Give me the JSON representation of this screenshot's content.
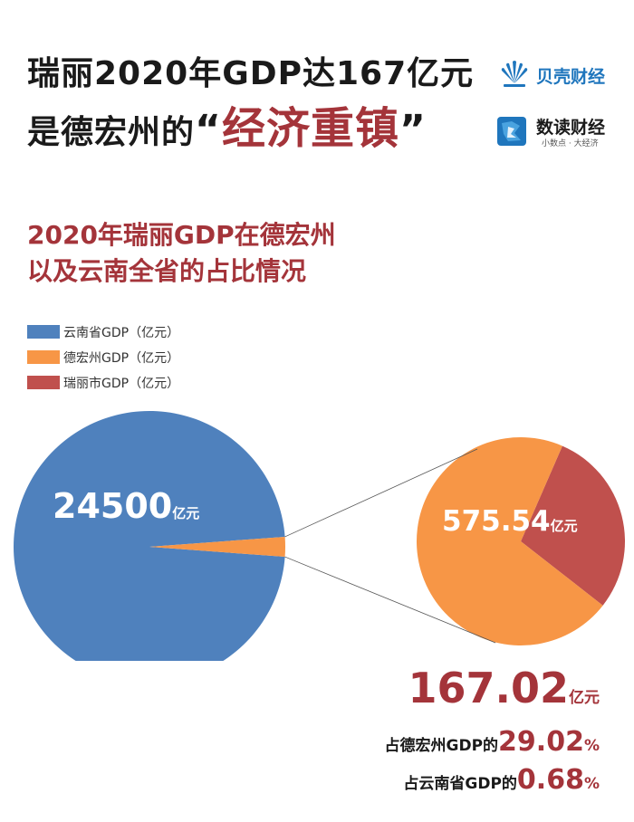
{
  "headline": {
    "line1": "瑞丽2020年GDP达167亿元",
    "line2_prefix": "是德宏州的",
    "quote_open": "“",
    "emphasis": "经济重镇",
    "quote_close": "”"
  },
  "logos": {
    "beike": {
      "name": "贝壳财经",
      "color": "#1f76bd"
    },
    "shudu": {
      "name": "数读财经",
      "tagline": "小数点 · 大经济"
    }
  },
  "chart_data": {
    "type": "pie",
    "title": [
      "2020年瑞丽GDP在德宏州",
      "以及云南全省的占比情况"
    ],
    "legend_placement": "top-left",
    "series": [
      {
        "name": "云南省GDP（亿元）",
        "value": 24500,
        "color": "#4f81bd"
      },
      {
        "name": "德宏州GDP（亿元）",
        "value": 575.54,
        "color": "#f79646"
      },
      {
        "name": "瑞丽市GDP（亿元）",
        "value": 167.02,
        "color": "#c0504d"
      }
    ],
    "labels": {
      "yunnan": {
        "number": "24500",
        "unit": "亿元"
      },
      "dehong": {
        "number": "575.54",
        "unit": "亿元"
      },
      "ruili": {
        "number": "167.02",
        "unit": "亿元"
      }
    },
    "annotations": [
      {
        "prefix": "占德宏州GDP的",
        "number": "29.02",
        "unit": "%"
      },
      {
        "prefix": "占云南省GDP的",
        "number": "0.68",
        "unit": "%"
      }
    ]
  }
}
